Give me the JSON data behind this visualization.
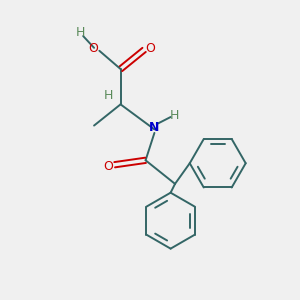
{
  "bg_color": "#f0f0f0",
  "bond_color": "#336666",
  "O_color": "#cc0000",
  "N_color": "#0000cc",
  "H_color": "#5a8a5a",
  "figsize": [
    3.0,
    3.0
  ],
  "dpi": 100,
  "xlim": [
    0,
    10
  ],
  "ylim": [
    0,
    10
  ]
}
